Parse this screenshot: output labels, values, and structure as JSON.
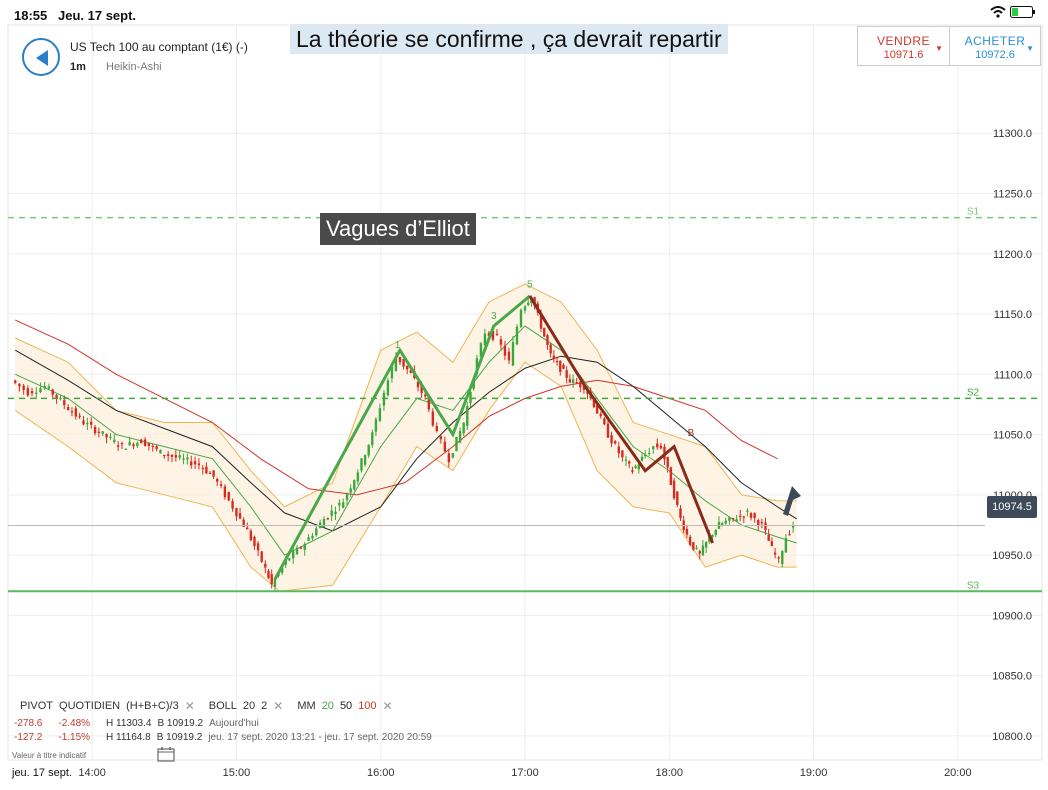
{
  "status_bar": {
    "time": "18:55",
    "date": "Jeu. 17 sept."
  },
  "header": {
    "instrument": "US Tech 100 au comptant (1€) (-)",
    "timeframe": "1m",
    "chart_type": "Heikin-Ashi"
  },
  "headline": "La théorie se confirme , ça devrait repartir",
  "trade": {
    "sell_label": "VENDRE",
    "sell_price": "10971.6",
    "buy_label": "ACHETER",
    "buy_price": "10972.6",
    "sell_color": "#d0342c",
    "buy_color": "#2a8fd0"
  },
  "annotation": "Vagues d’Elliot",
  "current_price": "10974.5",
  "indicators": {
    "pivot": "PIVOT",
    "pivot_period": "QUOTIDIEN",
    "pivot_formula": "(H+B+C)/3",
    "boll": "BOLL",
    "boll_p1": "20",
    "boll_p2": "2",
    "mm": "MM",
    "mm_1": "20",
    "mm_2": "50",
    "mm_3": "100",
    "remove_symbol": "✕"
  },
  "stats": [
    {
      "change": "-278.6",
      "pct": "-2.48%",
      "high": "H 11303.4",
      "low": "B 10919.2",
      "period": "Aujourd'hui"
    },
    {
      "change": "-127.2",
      "pct": "-1.15%",
      "high": "H 11164.8",
      "low": "B 10919.2",
      "period": "jeu. 17 sept. 2020 13:21 - jeu. 17 sept. 2020 20:59"
    }
  ],
  "indicative_note": "Valeur à titre indicatif",
  "bottom_date": "jeu. 17 sept.",
  "icons": [
    "back-arrow-icon",
    "wifi-icon",
    "battery-icon",
    "calendar-icon",
    "up-arrow-icon"
  ],
  "chart_data": {
    "type": "candlestick",
    "chart_type": "Heikin-Ashi",
    "y_ticks": [
      "11300.0",
      "11250.0",
      "11200.0",
      "11150.0",
      "11100.0",
      "11050.0",
      "11000.0",
      "10950.0",
      "10900.0",
      "10850.0",
      "10800.0"
    ],
    "y_tick_values": [
      11300,
      11250,
      11200,
      11150,
      11100,
      11050,
      11000,
      10950,
      10900,
      10850,
      10800
    ],
    "x_ticks": [
      "14:00",
      "15:00",
      "16:00",
      "17:00",
      "18:00",
      "19:00",
      "20:00"
    ],
    "x_tick_minutes": [
      840,
      900,
      960,
      1020,
      1080,
      1140,
      1200
    ],
    "ylim": [
      10780,
      11340
    ],
    "xlim": [
      805,
      1235
    ],
    "pivots": [
      {
        "name": "S1",
        "value": 11230,
        "style": "dashed",
        "color": "#7bc77b"
      },
      {
        "name": "S2",
        "value": 11080,
        "style": "dashed",
        "color": "#3fa83f"
      },
      {
        "name": "S3",
        "value": 10920,
        "style": "solid",
        "color": "#5cb85c"
      }
    ],
    "wave_labels": [
      {
        "label": "1",
        "minute": 967,
        "value": 11122
      },
      {
        "label": "3",
        "minute": 1007,
        "value": 11146
      },
      {
        "label": "5",
        "minute": 1022,
        "value": 11172
      },
      {
        "label": "B",
        "minute": 1089,
        "value": 11049
      }
    ],
    "price_path": [
      [
        808,
        11095
      ],
      [
        815,
        11085
      ],
      [
        822,
        11090
      ],
      [
        830,
        11075
      ],
      [
        838,
        11060
      ],
      [
        846,
        11050
      ],
      [
        854,
        11040
      ],
      [
        862,
        11045
      ],
      [
        870,
        11035
      ],
      [
        878,
        11030
      ],
      [
        886,
        11025
      ],
      [
        892,
        11015
      ],
      [
        900,
        10990
      ],
      [
        906,
        10970
      ],
      [
        912,
        10945
      ],
      [
        916,
        10925
      ],
      [
        922,
        10945
      ],
      [
        930,
        10960
      ],
      [
        938,
        10980
      ],
      [
        946,
        10995
      ],
      [
        952,
        11020
      ],
      [
        958,
        11050
      ],
      [
        963,
        11085
      ],
      [
        968,
        11115
      ],
      [
        974,
        11100
      ],
      [
        980,
        11080
      ],
      [
        985,
        11050
      ],
      [
        990,
        11030
      ],
      [
        996,
        11060
      ],
      [
        1000,
        11100
      ],
      [
        1005,
        11135
      ],
      [
        1010,
        11130
      ],
      [
        1015,
        11110
      ],
      [
        1020,
        11155
      ],
      [
        1024,
        11165
      ],
      [
        1028,
        11140
      ],
      [
        1032,
        11115
      ],
      [
        1036,
        11105
      ],
      [
        1040,
        11095
      ],
      [
        1046,
        11090
      ],
      [
        1050,
        11075
      ],
      [
        1056,
        11050
      ],
      [
        1062,
        11030
      ],
      [
        1066,
        11020
      ],
      [
        1070,
        11030
      ],
      [
        1075,
        11040
      ],
      [
        1078,
        11040
      ],
      [
        1082,
        11010
      ],
      [
        1086,
        10980
      ],
      [
        1090,
        10960
      ],
      [
        1094,
        10950
      ],
      [
        1098,
        10965
      ],
      [
        1102,
        10975
      ],
      [
        1108,
        10980
      ],
      [
        1114,
        10985
      ],
      [
        1120,
        10975
      ],
      [
        1124,
        10955
      ],
      [
        1127,
        10945
      ],
      [
        1130,
        10965
      ],
      [
        1133,
        10975
      ]
    ],
    "wave_lines": [
      {
        "color": "#4aa84a",
        "points": [
          [
            916,
            10930
          ],
          [
            968,
            11120
          ],
          [
            990,
            11050
          ],
          [
            1007,
            11140
          ],
          [
            1022,
            11165
          ]
        ]
      },
      {
        "color": "#8a2a1a",
        "points": [
          [
            1022,
            11165
          ],
          [
            1045,
            11090
          ],
          [
            1070,
            11020
          ],
          [
            1082,
            11040
          ],
          [
            1098,
            10960
          ]
        ]
      }
    ],
    "bollinger_upper": [
      [
        808,
        11130
      ],
      [
        830,
        11110
      ],
      [
        850,
        11070
      ],
      [
        870,
        11060
      ],
      [
        890,
        11060
      ],
      [
        906,
        11020
      ],
      [
        920,
        10990
      ],
      [
        940,
        11010
      ],
      [
        960,
        11120
      ],
      [
        975,
        11135
      ],
      [
        990,
        11110
      ],
      [
        1005,
        11160
      ],
      [
        1020,
        11175
      ],
      [
        1035,
        11160
      ],
      [
        1050,
        11120
      ],
      [
        1065,
        11060
      ],
      [
        1080,
        11050
      ],
      [
        1095,
        11040
      ],
      [
        1110,
        11000
      ],
      [
        1125,
        10995
      ],
      [
        1133,
        10995
      ]
    ],
    "bollinger_lower": [
      [
        808,
        11070
      ],
      [
        830,
        11040
      ],
      [
        850,
        11010
      ],
      [
        870,
        11000
      ],
      [
        890,
        10990
      ],
      [
        906,
        10940
      ],
      [
        918,
        10920
      ],
      [
        940,
        10925
      ],
      [
        960,
        10990
      ],
      [
        975,
        11040
      ],
      [
        990,
        11020
      ],
      [
        1005,
        11070
      ],
      [
        1020,
        11110
      ],
      [
        1035,
        11090
      ],
      [
        1050,
        11020
      ],
      [
        1065,
        10990
      ],
      [
        1080,
        10985
      ],
      [
        1095,
        10940
      ],
      [
        1110,
        10950
      ],
      [
        1125,
        10940
      ],
      [
        1133,
        10940
      ]
    ],
    "ma20": [
      [
        808,
        11100
      ],
      [
        830,
        11080
      ],
      [
        850,
        11050
      ],
      [
        870,
        11040
      ],
      [
        890,
        11030
      ],
      [
        906,
        10990
      ],
      [
        920,
        10950
      ],
      [
        940,
        10970
      ],
      [
        960,
        11040
      ],
      [
        975,
        11080
      ],
      [
        990,
        11070
      ],
      [
        1005,
        11110
      ],
      [
        1020,
        11140
      ],
      [
        1035,
        11120
      ],
      [
        1050,
        11080
      ],
      [
        1065,
        11040
      ],
      [
        1080,
        11020
      ],
      [
        1095,
        10995
      ],
      [
        1110,
        10975
      ],
      [
        1125,
        10965
      ],
      [
        1133,
        10960
      ]
    ],
    "ma50": [
      [
        808,
        11120
      ],
      [
        830,
        11095
      ],
      [
        850,
        11070
      ],
      [
        870,
        11055
      ],
      [
        890,
        11040
      ],
      [
        906,
        11010
      ],
      [
        920,
        10985
      ],
      [
        940,
        10970
      ],
      [
        960,
        10990
      ],
      [
        975,
        11030
      ],
      [
        990,
        11060
      ],
      [
        1005,
        11085
      ],
      [
        1020,
        11105
      ],
      [
        1035,
        11115
      ],
      [
        1050,
        11110
      ],
      [
        1065,
        11090
      ],
      [
        1080,
        11065
      ],
      [
        1095,
        11040
      ],
      [
        1110,
        11010
      ],
      [
        1125,
        10990
      ],
      [
        1133,
        10980
      ]
    ],
    "ma100": [
      [
        808,
        11145
      ],
      [
        830,
        11125
      ],
      [
        850,
        11100
      ],
      [
        870,
        11080
      ],
      [
        890,
        11060
      ],
      [
        910,
        11030
      ],
      [
        930,
        11005
      ],
      [
        950,
        11000
      ],
      [
        970,
        11010
      ],
      [
        990,
        11040
      ],
      [
        1005,
        11065
      ],
      [
        1020,
        11080
      ],
      [
        1035,
        11090
      ],
      [
        1050,
        11095
      ],
      [
        1065,
        11090
      ],
      [
        1080,
        11080
      ],
      [
        1095,
        11070
      ],
      [
        1110,
        11045
      ],
      [
        1125,
        11030
      ]
    ],
    "last_price": 10974.5
  }
}
